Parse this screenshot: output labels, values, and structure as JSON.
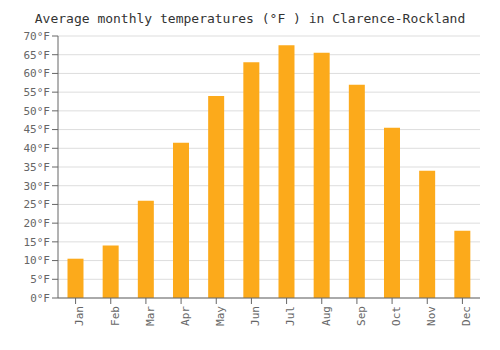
{
  "chart_data": {
    "type": "bar",
    "title": "Average monthly temperatures (°F ) in Clarence-Rockland",
    "categories": [
      "Jan",
      "Feb",
      "Mar",
      "Apr",
      "May",
      "Jun",
      "Jul",
      "Aug",
      "Sep",
      "Oct",
      "Nov",
      "Dec"
    ],
    "values": [
      10.5,
      14.0,
      26.0,
      41.5,
      54.0,
      63.0,
      67.5,
      65.5,
      57.0,
      45.5,
      34.0,
      18.0
    ],
    "color": "#FCAA1B",
    "ylim": [
      0,
      70
    ],
    "yticks": [
      {
        "value": 0,
        "label": "0°F"
      },
      {
        "value": 5,
        "label": "5°F"
      },
      {
        "value": 10,
        "label": "10°F"
      },
      {
        "value": 15,
        "label": "15°F"
      },
      {
        "value": 20,
        "label": "20°F"
      },
      {
        "value": 25,
        "label": "25°F"
      },
      {
        "value": 30,
        "label": "30°F"
      },
      {
        "value": 35,
        "label": "35°F"
      },
      {
        "value": 40,
        "label": "40°F"
      },
      {
        "value": 45,
        "label": "45°F"
      },
      {
        "value": 50,
        "label": "50°F"
      },
      {
        "value": 55,
        "label": "55°F"
      },
      {
        "value": 60,
        "label": "60°F"
      },
      {
        "value": 65,
        "label": "65°F"
      },
      {
        "value": 70,
        "label": "70°F"
      }
    ],
    "grid": true
  }
}
